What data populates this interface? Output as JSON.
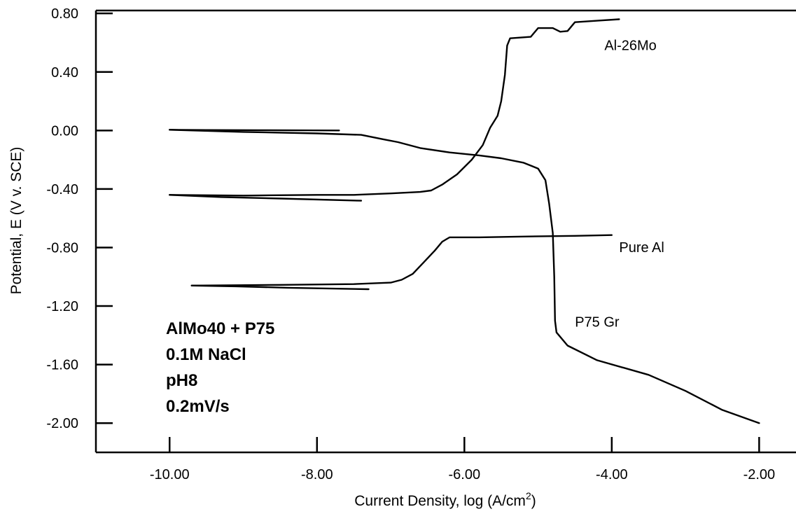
{
  "chart_data": {
    "type": "line",
    "xlabel": "Current Density, log (A/cm",
    "xlabel_sup": "2",
    "xlabel_end": ")",
    "ylabel": "Potential, E (V v. SCE)",
    "xlim": [
      -11.0,
      -1.5
    ],
    "ylim": [
      -2.2,
      0.82
    ],
    "x_ticks": [
      -10.0,
      -8.0,
      -6.0,
      -4.0,
      -2.0
    ],
    "x_tick_labels": [
      "-10.00",
      "-8.00",
      "-6.00",
      "-4.00",
      "-2.00"
    ],
    "y_ticks": [
      0.8,
      0.4,
      0.0,
      -0.4,
      -0.8,
      -1.2,
      -1.6,
      -2.0
    ],
    "y_tick_labels": [
      "0.80",
      "0.40",
      "0.00",
      "-0.40",
      "-0.80",
      "-1.20",
      "-1.60",
      "-2.00"
    ],
    "grid": false,
    "series": [
      {
        "name": "Al-26Mo",
        "label_at": [
          -4.1,
          0.55
        ],
        "segments": [
          [
            [
              -7.4,
              -0.48
            ],
            [
              -8.5,
              -0.465
            ],
            [
              -9.3,
              -0.455
            ],
            [
              -10.0,
              -0.44
            ]
          ],
          [
            [
              -10.0,
              -0.44
            ],
            [
              -9.0,
              -0.445
            ],
            [
              -8.0,
              -0.44
            ],
            [
              -7.5,
              -0.44
            ],
            [
              -7.0,
              -0.43
            ],
            [
              -6.6,
              -0.42
            ],
            [
              -6.45,
              -0.41
            ],
            [
              -6.3,
              -0.37
            ],
            [
              -6.1,
              -0.3
            ],
            [
              -5.9,
              -0.2
            ],
            [
              -5.75,
              -0.1
            ],
            [
              -5.65,
              0.02
            ],
            [
              -5.55,
              0.1
            ],
            [
              -5.5,
              0.2
            ],
            [
              -5.45,
              0.38
            ],
            [
              -5.42,
              0.58
            ],
            [
              -5.38,
              0.63
            ],
            [
              -5.1,
              0.64
            ],
            [
              -5.0,
              0.7
            ],
            [
              -4.8,
              0.7
            ],
            [
              -4.7,
              0.675
            ],
            [
              -4.6,
              0.68
            ],
            [
              -4.5,
              0.74
            ],
            [
              -4.2,
              0.75
            ],
            [
              -3.9,
              0.76
            ]
          ]
        ]
      },
      {
        "name": "Pure Al",
        "label_at": [
          -3.9,
          -0.83
        ],
        "segments": [
          [
            [
              -7.3,
              -1.085
            ],
            [
              -8.4,
              -1.075
            ],
            [
              -9.1,
              -1.065
            ],
            [
              -9.7,
              -1.06
            ]
          ],
          [
            [
              -9.7,
              -1.06
            ],
            [
              -8.5,
              -1.055
            ],
            [
              -7.5,
              -1.05
            ],
            [
              -7.0,
              -1.04
            ],
            [
              -6.85,
              -1.02
            ],
            [
              -6.7,
              -0.98
            ],
            [
              -6.55,
              -0.9
            ],
            [
              -6.4,
              -0.82
            ],
            [
              -6.3,
              -0.76
            ],
            [
              -6.2,
              -0.73
            ],
            [
              -5.8,
              -0.73
            ],
            [
              -5.2,
              -0.725
            ],
            [
              -4.5,
              -0.72
            ],
            [
              -4.0,
              -0.715
            ]
          ]
        ]
      },
      {
        "name": "P75 Gr",
        "label_at": [
          -4.5,
          -1.34
        ],
        "segments": [
          [
            [
              -7.7,
              0.0
            ],
            [
              -8.8,
              0.002
            ],
            [
              -9.5,
              0.003
            ],
            [
              -10.0,
              0.005
            ]
          ],
          [
            [
              -10.0,
              0.005
            ],
            [
              -9.0,
              -0.01
            ],
            [
              -8.0,
              -0.02
            ],
            [
              -7.4,
              -0.03
            ],
            [
              -7.1,
              -0.06
            ],
            [
              -6.9,
              -0.08
            ],
            [
              -6.6,
              -0.12
            ],
            [
              -6.2,
              -0.15
            ],
            [
              -5.8,
              -0.17
            ],
            [
              -5.5,
              -0.19
            ],
            [
              -5.2,
              -0.22
            ],
            [
              -5.0,
              -0.26
            ],
            [
              -4.9,
              -0.34
            ],
            [
              -4.85,
              -0.5
            ],
            [
              -4.8,
              -0.7
            ],
            [
              -4.78,
              -1.0
            ],
            [
              -4.77,
              -1.3
            ],
            [
              -4.75,
              -1.38
            ],
            [
              -4.6,
              -1.47
            ],
            [
              -4.2,
              -1.57
            ],
            [
              -3.5,
              -1.67
            ],
            [
              -3.0,
              -1.78
            ],
            [
              -2.5,
              -1.91
            ],
            [
              -2.0,
              -2.0
            ]
          ]
        ]
      }
    ],
    "annotations": [
      "AlMo40 + P75",
      "0.1M NaCl",
      "pH8",
      "0.2mV/s"
    ]
  }
}
